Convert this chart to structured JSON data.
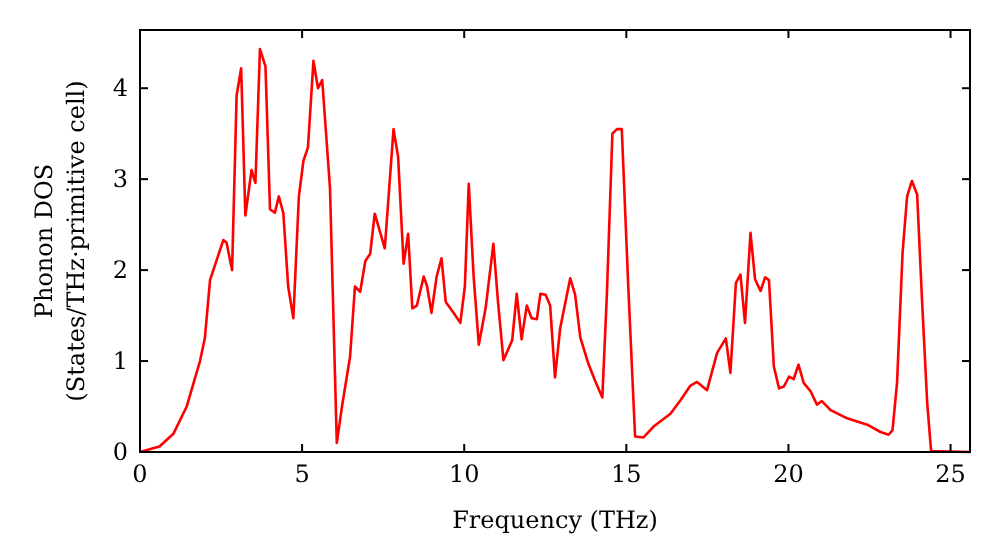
{
  "chart_data": {
    "type": "line",
    "xlabel": "Frequency (THz)",
    "ylabel": "Phonon DOS\n(States/THz·primitive cell)",
    "xlim": [
      0,
      25.6
    ],
    "ylim": [
      0,
      4.64
    ],
    "xticks": [
      0,
      5,
      10,
      15,
      20,
      25
    ],
    "yticks": [
      0,
      1,
      2,
      3,
      4
    ],
    "grid": false,
    "marker": "none",
    "line_style": "solid",
    "series": [
      {
        "color": "#ff0000",
        "x": [
          0,
          0.6,
          1.03,
          1.44,
          1.85,
          2.0,
          2.16,
          2.57,
          2.67,
          2.84,
          2.98,
          3.12,
          3.25,
          3.44,
          3.56,
          3.7,
          3.87,
          4.01,
          4.16,
          4.28,
          4.42,
          4.57,
          4.73,
          4.9,
          5.04,
          5.18,
          5.35,
          5.49,
          5.62,
          5.86,
          6.07,
          6.23,
          6.48,
          6.63,
          6.79,
          6.95,
          7.1,
          7.24,
          7.55,
          7.82,
          7.96,
          8.13,
          8.27,
          8.4,
          8.54,
          8.75,
          8.85,
          8.99,
          9.15,
          9.3,
          9.43,
          9.67,
          9.88,
          10.02,
          10.14,
          10.29,
          10.45,
          10.66,
          10.9,
          11.04,
          11.21,
          11.48,
          11.62,
          11.77,
          11.93,
          12.08,
          12.24,
          12.35,
          12.51,
          12.65,
          12.8,
          12.96,
          13.27,
          13.42,
          13.58,
          13.83,
          14.03,
          14.26,
          14.4,
          14.57,
          14.71,
          14.86,
          15.06,
          15.27,
          15.53,
          15.84,
          16.36,
          16.67,
          16.98,
          17.18,
          17.49,
          17.8,
          18.07,
          18.21,
          18.38,
          18.52,
          18.66,
          18.83,
          18.97,
          19.14,
          19.28,
          19.4,
          19.55,
          19.71,
          19.86,
          20.02,
          20.16,
          20.31,
          20.47,
          20.68,
          20.88,
          21.03,
          21.3,
          21.81,
          22.43,
          22.84,
          23.09,
          23.21,
          23.35,
          23.52,
          23.66,
          23.81,
          23.97,
          24.12,
          24.28,
          24.4,
          25.6
        ],
        "values": [
          0,
          0.06,
          0.2,
          0.5,
          1.0,
          1.25,
          1.89,
          2.33,
          2.3,
          2.0,
          3.92,
          4.22,
          2.6,
          3.1,
          2.96,
          4.43,
          4.24,
          2.67,
          2.63,
          2.81,
          2.63,
          1.82,
          1.47,
          2.81,
          3.2,
          3.35,
          4.3,
          4.0,
          4.09,
          2.9,
          0.1,
          0.5,
          1.05,
          1.82,
          1.76,
          2.1,
          2.18,
          2.62,
          2.24,
          3.55,
          3.25,
          2.07,
          2.4,
          1.58,
          1.61,
          1.93,
          1.83,
          1.53,
          1.93,
          2.13,
          1.65,
          1.53,
          1.42,
          1.82,
          2.95,
          1.93,
          1.18,
          1.58,
          2.29,
          1.66,
          1.01,
          1.23,
          1.74,
          1.24,
          1.61,
          1.47,
          1.46,
          1.74,
          1.73,
          1.61,
          0.82,
          1.36,
          1.91,
          1.73,
          1.26,
          0.97,
          0.79,
          0.6,
          1.73,
          3.5,
          3.55,
          3.55,
          1.82,
          0.17,
          0.16,
          0.28,
          0.42,
          0.57,
          0.73,
          0.77,
          0.68,
          1.09,
          1.25,
          0.87,
          1.86,
          1.95,
          1.42,
          2.41,
          1.9,
          1.77,
          1.92,
          1.89,
          0.94,
          0.7,
          0.72,
          0.83,
          0.8,
          0.96,
          0.76,
          0.67,
          0.52,
          0.56,
          0.46,
          0.37,
          0.3,
          0.22,
          0.19,
          0.24,
          0.76,
          2.19,
          2.81,
          2.98,
          2.83,
          1.67,
          0.54,
          0.01,
          0
        ]
      }
    ]
  }
}
